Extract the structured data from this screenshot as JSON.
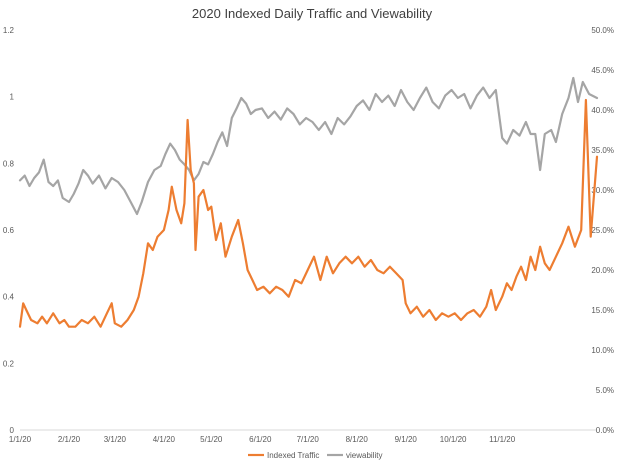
{
  "chart_data": {
    "type": "line",
    "title": "2020 Indexed Daily Traffic and Viewability",
    "x_tick_labels": [
      "1/1/20",
      "2/1/20",
      "3/1/20",
      "4/1/20",
      "5/1/20",
      "6/1/20",
      "7/1/20",
      "8/1/20",
      "9/1/20",
      "10/1/20",
      "11/1/20"
    ],
    "x_range": [
      "1/1/20",
      "12/31/20"
    ],
    "y_left": {
      "ylim": [
        0,
        1.2
      ],
      "tick_labels": [
        "0",
        "0.2",
        "0.4",
        "0.6",
        "0.8",
        "1",
        "1.2"
      ]
    },
    "y_right": {
      "ylim": [
        0,
        50
      ],
      "tick_labels": [
        "0.0%",
        "5.0%",
        "10.0%",
        "15.0%",
        "20.0%",
        "25.0%",
        "30.0%",
        "35.0%",
        "40.0%",
        "45.0%",
        "50.0%"
      ]
    },
    "grid": false,
    "legend_position": "bottom",
    "series": [
      {
        "name": "Indexed Traffic",
        "axis": "left",
        "color": "#ED7D31",
        "points": [
          [
            "1/1/20",
            0.31
          ],
          [
            "1/3/20",
            0.38
          ],
          [
            "1/5/20",
            0.36
          ],
          [
            "1/8/20",
            0.33
          ],
          [
            "1/12/20",
            0.32
          ],
          [
            "1/15/20",
            0.34
          ],
          [
            "1/18/20",
            0.32
          ],
          [
            "1/22/20",
            0.35
          ],
          [
            "1/26/20",
            0.32
          ],
          [
            "1/29/20",
            0.33
          ],
          [
            "2/1/20",
            0.31
          ],
          [
            "2/5/20",
            0.31
          ],
          [
            "2/9/20",
            0.33
          ],
          [
            "2/13/20",
            0.32
          ],
          [
            "2/17/20",
            0.34
          ],
          [
            "2/21/20",
            0.31
          ],
          [
            "2/25/20",
            0.35
          ],
          [
            "2/28/20",
            0.38
          ],
          [
            "3/1/20",
            0.32
          ],
          [
            "3/5/20",
            0.31
          ],
          [
            "3/9/20",
            0.33
          ],
          [
            "3/13/20",
            0.36
          ],
          [
            "3/16/20",
            0.4
          ],
          [
            "3/19/20",
            0.47
          ],
          [
            "3/22/20",
            0.56
          ],
          [
            "3/25/20",
            0.54
          ],
          [
            "3/28/20",
            0.58
          ],
          [
            "4/1/20",
            0.6
          ],
          [
            "4/4/20",
            0.66
          ],
          [
            "4/6/20",
            0.73
          ],
          [
            "4/9/20",
            0.66
          ],
          [
            "4/12/20",
            0.62
          ],
          [
            "4/14/20",
            0.68
          ],
          [
            "4/16/20",
            0.93
          ],
          [
            "4/18/20",
            0.78
          ],
          [
            "4/20/20",
            0.74
          ],
          [
            "4/21/20",
            0.54
          ],
          [
            "4/23/20",
            0.7
          ],
          [
            "4/26/20",
            0.72
          ],
          [
            "4/29/20",
            0.66
          ],
          [
            "5/1/20",
            0.67
          ],
          [
            "5/4/20",
            0.57
          ],
          [
            "5/7/20",
            0.62
          ],
          [
            "5/10/20",
            0.52
          ],
          [
            "5/14/20",
            0.58
          ],
          [
            "5/18/20",
            0.63
          ],
          [
            "5/21/20",
            0.56
          ],
          [
            "5/24/20",
            0.48
          ],
          [
            "5/27/20",
            0.45
          ],
          [
            "5/30/20",
            0.42
          ],
          [
            "6/3/20",
            0.43
          ],
          [
            "6/7/20",
            0.41
          ],
          [
            "6/11/20",
            0.43
          ],
          [
            "6/15/20",
            0.42
          ],
          [
            "6/19/20",
            0.4
          ],
          [
            "6/23/20",
            0.45
          ],
          [
            "6/27/20",
            0.44
          ],
          [
            "7/1/20",
            0.48
          ],
          [
            "7/5/20",
            0.52
          ],
          [
            "7/9/20",
            0.45
          ],
          [
            "7/13/20",
            0.52
          ],
          [
            "7/17/20",
            0.47
          ],
          [
            "7/21/20",
            0.5
          ],
          [
            "7/25/20",
            0.52
          ],
          [
            "7/29/20",
            0.5
          ],
          [
            "8/2/20",
            0.52
          ],
          [
            "8/6/20",
            0.49
          ],
          [
            "8/10/20",
            0.51
          ],
          [
            "8/14/20",
            0.48
          ],
          [
            "8/18/20",
            0.47
          ],
          [
            "8/22/20",
            0.49
          ],
          [
            "8/26/20",
            0.47
          ],
          [
            "8/30/20",
            0.45
          ],
          [
            "9/1/20",
            0.38
          ],
          [
            "9/4/20",
            0.35
          ],
          [
            "9/8/20",
            0.37
          ],
          [
            "9/12/20",
            0.34
          ],
          [
            "9/16/20",
            0.36
          ],
          [
            "9/20/20",
            0.33
          ],
          [
            "9/24/20",
            0.35
          ],
          [
            "9/28/20",
            0.34
          ],
          [
            "10/2/20",
            0.35
          ],
          [
            "10/6/20",
            0.33
          ],
          [
            "10/10/20",
            0.35
          ],
          [
            "10/14/20",
            0.36
          ],
          [
            "10/18/20",
            0.34
          ],
          [
            "10/22/20",
            0.37
          ],
          [
            "10/25/20",
            0.42
          ],
          [
            "10/28/20",
            0.36
          ],
          [
            "11/1/20",
            0.4
          ],
          [
            "11/4/20",
            0.44
          ],
          [
            "11/7/20",
            0.42
          ],
          [
            "11/10/20",
            0.46
          ],
          [
            "11/13/20",
            0.49
          ],
          [
            "11/16/20",
            0.45
          ],
          [
            "11/19/20",
            0.52
          ],
          [
            "11/22/20",
            0.48
          ],
          [
            "11/25/20",
            0.55
          ],
          [
            "11/28/20",
            0.5
          ],
          [
            "12/1/20",
            0.48
          ],
          [
            "12/5/20",
            0.52
          ],
          [
            "12/9/20",
            0.56
          ],
          [
            "12/13/20",
            0.61
          ],
          [
            "12/17/20",
            0.55
          ],
          [
            "12/21/20",
            0.6
          ],
          [
            "12/24/20",
            0.99
          ],
          [
            "12/27/20",
            0.58
          ],
          [
            "12/31/20",
            0.82
          ]
        ]
      },
      {
        "name": "viewability",
        "axis": "right",
        "color": "#A5A5A5",
        "points": [
          [
            "1/1/20",
            31.2
          ],
          [
            "1/4/20",
            31.8
          ],
          [
            "1/7/20",
            30.5
          ],
          [
            "1/10/20",
            31.5
          ],
          [
            "1/13/20",
            32.2
          ],
          [
            "1/16/20",
            33.8
          ],
          [
            "1/19/20",
            31.0
          ],
          [
            "1/22/20",
            30.5
          ],
          [
            "1/25/20",
            31.2
          ],
          [
            "1/28/20",
            29.0
          ],
          [
            "2/1/20",
            28.5
          ],
          [
            "2/4/20",
            29.5
          ],
          [
            "2/7/20",
            30.8
          ],
          [
            "2/10/20",
            32.5
          ],
          [
            "2/13/20",
            31.8
          ],
          [
            "2/16/20",
            30.8
          ],
          [
            "2/20/20",
            31.8
          ],
          [
            "2/24/20",
            30.2
          ],
          [
            "2/28/20",
            31.5
          ],
          [
            "3/3/20",
            31.0
          ],
          [
            "3/7/20",
            30.0
          ],
          [
            "3/11/20",
            28.5
          ],
          [
            "3/15/20",
            27.0
          ],
          [
            "3/18/20",
            28.5
          ],
          [
            "3/22/20",
            31.0
          ],
          [
            "3/26/20",
            32.5
          ],
          [
            "3/30/20",
            33.0
          ],
          [
            "4/2/20",
            34.5
          ],
          [
            "4/5/20",
            35.8
          ],
          [
            "4/8/20",
            35.0
          ],
          [
            "4/11/20",
            33.8
          ],
          [
            "4/14/20",
            33.2
          ],
          [
            "4/17/20",
            32.5
          ],
          [
            "4/20/20",
            31.2
          ],
          [
            "4/23/20",
            32.0
          ],
          [
            "4/26/20",
            33.5
          ],
          [
            "4/29/20",
            33.2
          ],
          [
            "5/2/20",
            34.5
          ],
          [
            "5/5/20",
            36.0
          ],
          [
            "5/8/20",
            37.2
          ],
          [
            "5/11/20",
            35.5
          ],
          [
            "5/14/20",
            39.0
          ],
          [
            "5/17/20",
            40.2
          ],
          [
            "5/20/20",
            41.5
          ],
          [
            "5/23/20",
            40.8
          ],
          [
            "5/26/20",
            39.5
          ],
          [
            "5/29/20",
            40.0
          ],
          [
            "6/2/20",
            40.2
          ],
          [
            "6/6/20",
            39.0
          ],
          [
            "6/10/20",
            39.8
          ],
          [
            "6/14/20",
            38.8
          ],
          [
            "6/18/20",
            40.2
          ],
          [
            "6/22/20",
            39.5
          ],
          [
            "6/26/20",
            38.2
          ],
          [
            "6/30/20",
            39.0
          ],
          [
            "7/4/20",
            38.5
          ],
          [
            "7/8/20",
            37.5
          ],
          [
            "7/12/20",
            38.5
          ],
          [
            "7/16/20",
            37.0
          ],
          [
            "7/20/20",
            39.0
          ],
          [
            "7/24/20",
            38.2
          ],
          [
            "7/28/20",
            39.2
          ],
          [
            "8/1/20",
            40.5
          ],
          [
            "8/5/20",
            41.2
          ],
          [
            "8/9/20",
            40.0
          ],
          [
            "8/13/20",
            42.0
          ],
          [
            "8/17/20",
            41.0
          ],
          [
            "8/21/20",
            41.8
          ],
          [
            "8/25/20",
            40.5
          ],
          [
            "8/29/20",
            42.5
          ],
          [
            "9/2/20",
            41.0
          ],
          [
            "9/6/20",
            40.0
          ],
          [
            "9/10/20",
            41.5
          ],
          [
            "9/14/20",
            42.8
          ],
          [
            "9/18/20",
            41.0
          ],
          [
            "9/22/20",
            40.2
          ],
          [
            "9/26/20",
            41.8
          ],
          [
            "9/30/20",
            42.5
          ],
          [
            "10/4/20",
            41.5
          ],
          [
            "10/8/20",
            42.0
          ],
          [
            "10/12/20",
            40.2
          ],
          [
            "10/16/20",
            41.8
          ],
          [
            "10/20/20",
            42.8
          ],
          [
            "10/24/20",
            41.5
          ],
          [
            "10/28/20",
            42.5
          ],
          [
            "11/1/20",
            36.5
          ],
          [
            "11/4/20",
            35.8
          ],
          [
            "11/8/20",
            37.5
          ],
          [
            "11/12/20",
            36.8
          ],
          [
            "11/16/20",
            38.5
          ],
          [
            "11/19/20",
            37.0
          ],
          [
            "11/22/20",
            37.0
          ],
          [
            "11/25/20",
            32.5
          ],
          [
            "11/28/20",
            37.0
          ],
          [
            "12/2/20",
            37.5
          ],
          [
            "12/5/20",
            36.0
          ],
          [
            "12/9/20",
            39.5
          ],
          [
            "12/13/20",
            41.5
          ],
          [
            "12/16/20",
            44.0
          ],
          [
            "12/19/20",
            41.0
          ],
          [
            "12/22/20",
            43.5
          ],
          [
            "12/26/20",
            42.0
          ],
          [
            "12/31/20",
            41.5
          ]
        ]
      }
    ]
  }
}
